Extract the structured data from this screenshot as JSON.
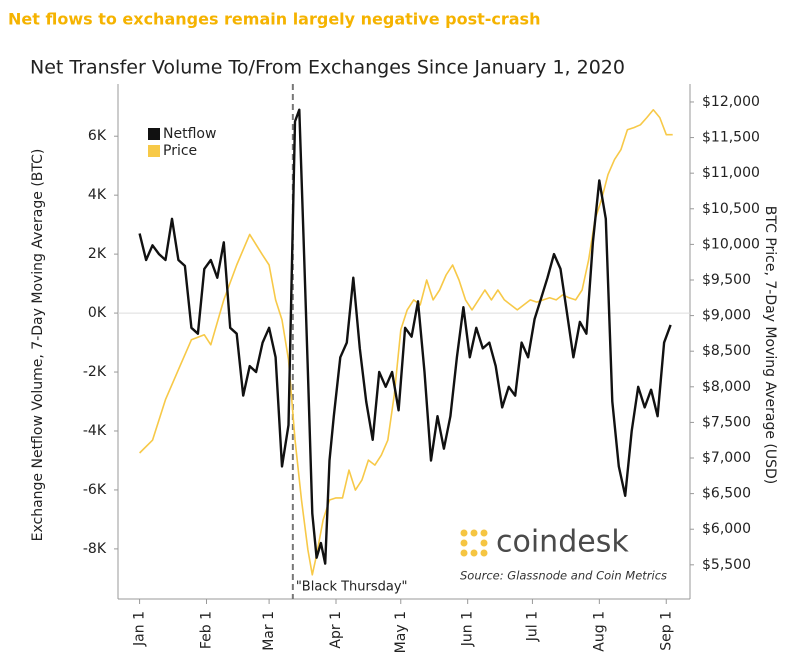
{
  "chart_data": {
    "type": "line",
    "headline": "Net flows to exchanges remain largely negative post-crash",
    "title": "Net Transfer Volume To/From Exchanges Since January 1, 2020",
    "y_label": "Exchange Netflow Volume, 7-Day Moving Average (BTC)",
    "y2_label": "BTC Price, 7-Day Moving Average (USD)",
    "watermark": "coindesk",
    "source": "Source: Glassnode and Coin Metrics",
    "annotation": {
      "x": 71,
      "text": "\"Black Thursday\""
    },
    "legend": "top-left",
    "xlim": [
      -10,
      255
    ],
    "xticks": [
      {
        "value": 0,
        "label": "Jan 1"
      },
      {
        "value": 31,
        "label": "Feb 1"
      },
      {
        "value": 60,
        "label": "Mar 1"
      },
      {
        "value": 91,
        "label": "Apr 1"
      },
      {
        "value": 121,
        "label": "May 1"
      },
      {
        "value": 152,
        "label": "Jun 1"
      },
      {
        "value": 182,
        "label": "Jul 1"
      },
      {
        "value": 213,
        "label": "Aug 1"
      },
      {
        "value": 244,
        "label": "Sep 1"
      }
    ],
    "ylim": [
      -9700,
      7500
    ],
    "yticks": [
      {
        "value": 6000,
        "label": "6K"
      },
      {
        "value": 4000,
        "label": "4K"
      },
      {
        "value": 2000,
        "label": "2K"
      },
      {
        "value": 0,
        "label": "0K"
      },
      {
        "value": -2000,
        "label": "-2K"
      },
      {
        "value": -4000,
        "label": "-4K"
      },
      {
        "value": -6000,
        "label": "-6K"
      },
      {
        "value": -8000,
        "label": "-8K"
      }
    ],
    "y2lim": [
      5020,
      12140
    ],
    "y2ticks": [
      {
        "value": 12000,
        "label": "$12,000"
      },
      {
        "value": 11500,
        "label": "$11,500"
      },
      {
        "value": 11000,
        "label": "$11,000"
      },
      {
        "value": 10500,
        "label": "$10,500"
      },
      {
        "value": 10000,
        "label": "$10,000"
      },
      {
        "value": 9500,
        "label": "$9,500"
      },
      {
        "value": 9000,
        "label": "$9,000"
      },
      {
        "value": 8500,
        "label": "$8,500"
      },
      {
        "value": 8000,
        "label": "$8,000"
      },
      {
        "value": 7500,
        "label": "$7,500"
      },
      {
        "value": 7000,
        "label": "$7,000"
      },
      {
        "value": 6500,
        "label": "$6,500"
      },
      {
        "value": 6000,
        "label": "$6,000"
      },
      {
        "value": 5500,
        "label": "$5,500"
      }
    ],
    "series": [
      {
        "name": "Netflow",
        "color": "#111111",
        "x": [
          0,
          3,
          6,
          9,
          12,
          15,
          18,
          21,
          24,
          27,
          30,
          33,
          36,
          39,
          42,
          45,
          48,
          51,
          54,
          57,
          60,
          63,
          66,
          69,
          72,
          74,
          76,
          78,
          80,
          82,
          84,
          86,
          88,
          90,
          93,
          96,
          99,
          102,
          105,
          108,
          111,
          114,
          117,
          120,
          123,
          126,
          129,
          132,
          135,
          138,
          141,
          144,
          147,
          150,
          153,
          156,
          159,
          162,
          165,
          168,
          171,
          174,
          177,
          180,
          183,
          186,
          189,
          192,
          195,
          198,
          201,
          204,
          207,
          210,
          213,
          216,
          219,
          222,
          225,
          228,
          231,
          234,
          237,
          240,
          243,
          246
        ],
        "values": [
          2700,
          1800,
          2300,
          2000,
          1800,
          3200,
          1800,
          1600,
          -500,
          -700,
          1500,
          1800,
          1200,
          2400,
          -500,
          -700,
          -2800,
          -1800,
          -2000,
          -1000,
          -500,
          -1500,
          -5200,
          -3800,
          6500,
          6900,
          2500,
          -2000,
          -6800,
          -8300,
          -7800,
          -8500,
          -5000,
          -3500,
          -1500,
          -1000,
          1200,
          -1200,
          -3000,
          -4300,
          -2000,
          -2500,
          -2000,
          -3300,
          -500,
          -800,
          400,
          -2000,
          -5000,
          -3500,
          -4600,
          -3500,
          -1500,
          200,
          -1500,
          -500,
          -1200,
          -1000,
          -1800,
          -3200,
          -2500,
          -2800,
          -1000,
          -1500,
          -200,
          500,
          1200,
          2000,
          1500,
          0,
          -1500,
          -300,
          -700,
          2400,
          4500,
          3200,
          -3000,
          -5200,
          -6200,
          -4000,
          -2500,
          -3200,
          -2600,
          -3500,
          -1000,
          -400
        ]
      },
      {
        "name": "Price",
        "color": "#f7c948",
        "axis": "y2",
        "x": [
          0,
          6,
          12,
          18,
          24,
          30,
          33,
          39,
          45,
          51,
          57,
          60,
          63,
          66,
          69,
          72,
          75,
          78,
          80,
          82,
          85,
          88,
          91,
          94,
          97,
          100,
          103,
          106,
          109,
          112,
          115,
          118,
          121,
          124,
          127,
          130,
          133,
          136,
          139,
          142,
          145,
          148,
          151,
          154,
          157,
          160,
          163,
          166,
          169,
          172,
          175,
          178,
          181,
          184,
          187,
          190,
          193,
          196,
          199,
          202,
          205,
          208,
          211,
          214,
          217,
          220,
          223,
          226,
          229,
          232,
          235,
          238,
          241,
          244,
          247
        ],
        "values": [
          7070,
          7250,
          7820,
          8240,
          8660,
          8730,
          8590,
          9220,
          9710,
          10140,
          9850,
          9710,
          9220,
          8940,
          8380,
          7260,
          6410,
          5710,
          5360,
          5640,
          6130,
          6410,
          6440,
          6440,
          6830,
          6550,
          6690,
          6970,
          6900,
          7040,
          7250,
          7890,
          8800,
          9080,
          9220,
          9150,
          9500,
          9220,
          9360,
          9570,
          9710,
          9500,
          9220,
          9080,
          9220,
          9360,
          9220,
          9360,
          9220,
          9150,
          9080,
          9150,
          9220,
          9190,
          9220,
          9250,
          9220,
          9290,
          9250,
          9220,
          9360,
          9780,
          10350,
          10630,
          10980,
          11190,
          11330,
          11610,
          11640,
          11680,
          11780,
          11890,
          11780,
          11540,
          11540
        ]
      }
    ]
  }
}
